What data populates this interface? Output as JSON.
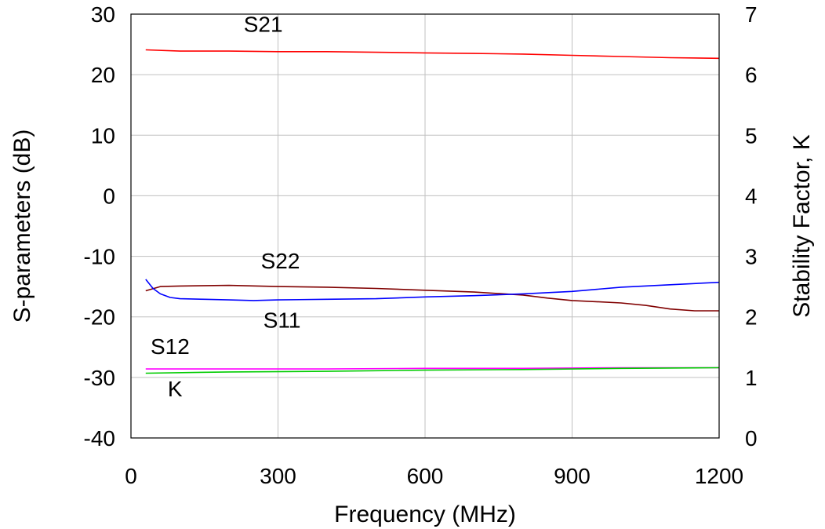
{
  "chart_data": {
    "type": "line",
    "xlabel": "Frequency (MHz)",
    "ylabel": "S-parameters (dB)",
    "y2label": "Stability Factor, K",
    "xlim": [
      0,
      1200
    ],
    "ylim": [
      -40,
      30
    ],
    "y2lim": [
      0,
      7
    ],
    "x_ticks": [
      "0",
      "300",
      "600",
      "900",
      "1200"
    ],
    "y_ticks": [
      "30",
      "20",
      "10",
      "0",
      "-10",
      "-20",
      "-30",
      "-40"
    ],
    "y2_ticks": [
      "7",
      "6",
      "5",
      "4",
      "3",
      "2",
      "1",
      "0"
    ],
    "grid": true,
    "series": [
      {
        "name": "S21",
        "axis": "left",
        "color": "#ff0000",
        "x": [
          30,
          100,
          200,
          300,
          400,
          500,
          600,
          700,
          800,
          900,
          1000,
          1100,
          1200
        ],
        "y": [
          24.1,
          23.9,
          23.9,
          23.8,
          23.8,
          23.7,
          23.6,
          23.5,
          23.4,
          23.2,
          23.0,
          22.8,
          22.7
        ]
      },
      {
        "name": "S22",
        "axis": "left",
        "color": "#800000",
        "x": [
          30,
          60,
          100,
          200,
          300,
          400,
          500,
          600,
          700,
          800,
          850,
          900,
          950,
          1000,
          1050,
          1100,
          1150,
          1200
        ],
        "y": [
          -15.7,
          -15.0,
          -14.9,
          -14.8,
          -15.0,
          -15.1,
          -15.3,
          -15.6,
          -15.9,
          -16.4,
          -16.9,
          -17.3,
          -17.5,
          -17.7,
          -18.1,
          -18.7,
          -19.0,
          -19.0
        ]
      },
      {
        "name": "S11",
        "axis": "left",
        "color": "#0000ff",
        "x": [
          30,
          45,
          60,
          80,
          100,
          150,
          200,
          250,
          300,
          400,
          500,
          600,
          700,
          800,
          900,
          1000,
          1100,
          1200
        ],
        "y": [
          -13.8,
          -15.3,
          -16.2,
          -16.8,
          -17.0,
          -17.1,
          -17.2,
          -17.3,
          -17.2,
          -17.1,
          -17.0,
          -16.7,
          -16.5,
          -16.2,
          -15.8,
          -15.1,
          -14.7,
          -14.3
        ]
      },
      {
        "name": "S12",
        "axis": "left",
        "color": "#ff00ff",
        "x": [
          30,
          200,
          400,
          600,
          800,
          1000,
          1200
        ],
        "y": [
          -28.6,
          -28.6,
          -28.6,
          -28.5,
          -28.5,
          -28.4,
          -28.4
        ]
      },
      {
        "name": "K",
        "axis": "right",
        "color": "#00cc00",
        "x": [
          30,
          200,
          400,
          600,
          800,
          1000,
          1200
        ],
        "y": [
          1.07,
          1.09,
          1.1,
          1.12,
          1.13,
          1.15,
          1.16
        ]
      }
    ],
    "annotations": [
      {
        "text": "S21",
        "x": 230,
        "y": 27.1
      },
      {
        "text": "S22",
        "x": 265,
        "y": -12.0
      },
      {
        "text": "S11",
        "x": 270,
        "y": -21.8
      },
      {
        "text": "S12",
        "x": 40,
        "y": -26.1
      },
      {
        "text": "K",
        "x": 75,
        "y": -33.1
      }
    ]
  }
}
